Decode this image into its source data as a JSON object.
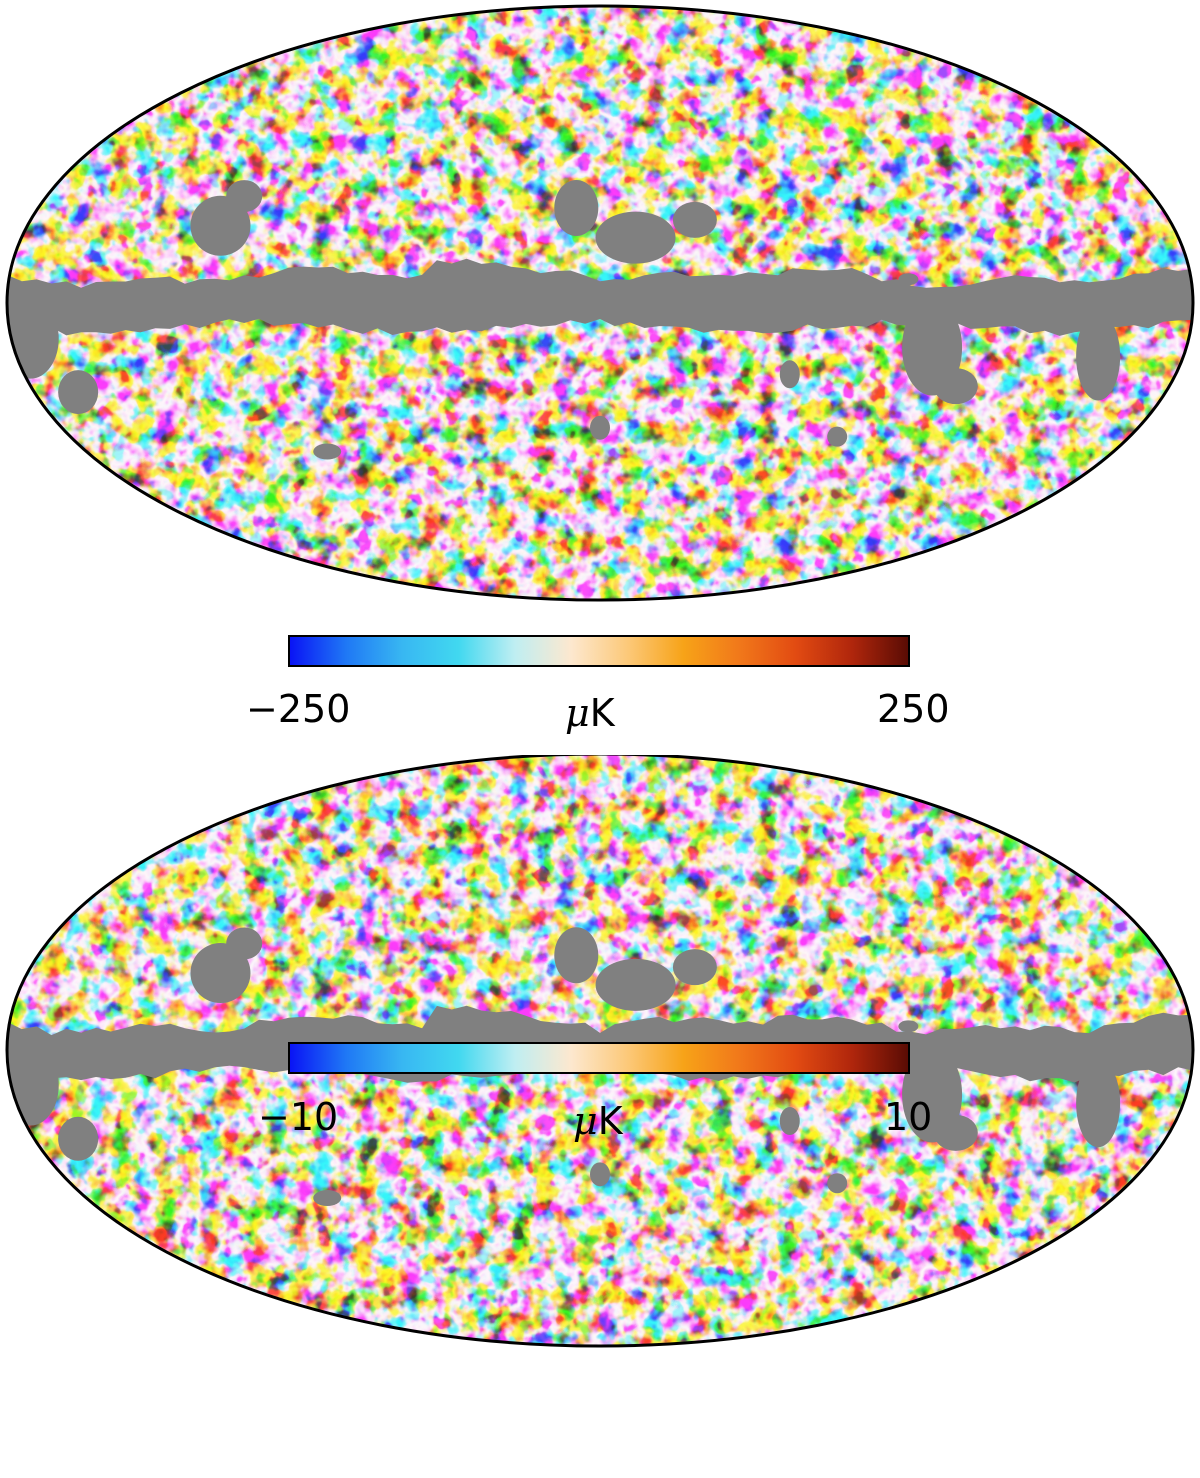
{
  "colormap": [
    "#0a14f5",
    "#1f78f5",
    "#38b7f2",
    "#41d8f0",
    "#bfeef2",
    "#fde8cf",
    "#fcc97a",
    "#f7a318",
    "#f1781a",
    "#e24b12",
    "#b0260c",
    "#5a0c04"
  ],
  "mask_color": "#808080",
  "panels": [
    {
      "name": "top-map",
      "colorbar": {
        "min_label": "−250",
        "max_label": "250",
        "unit_mu": "μ",
        "unit_rest": "K"
      },
      "levels": [
        0.12,
        0.22,
        0.35,
        0.5,
        0.62,
        0.75,
        0.88
      ],
      "seed": 7
    },
    {
      "name": "bottom-map",
      "colorbar": {
        "min_label": "−10",
        "max_label": "10",
        "unit_mu": "μ",
        "unit_rest": "K"
      },
      "levels": [
        0.3,
        0.4,
        0.46,
        0.52,
        0.6,
        0.7,
        0.86
      ],
      "seed": 13
    }
  ]
}
